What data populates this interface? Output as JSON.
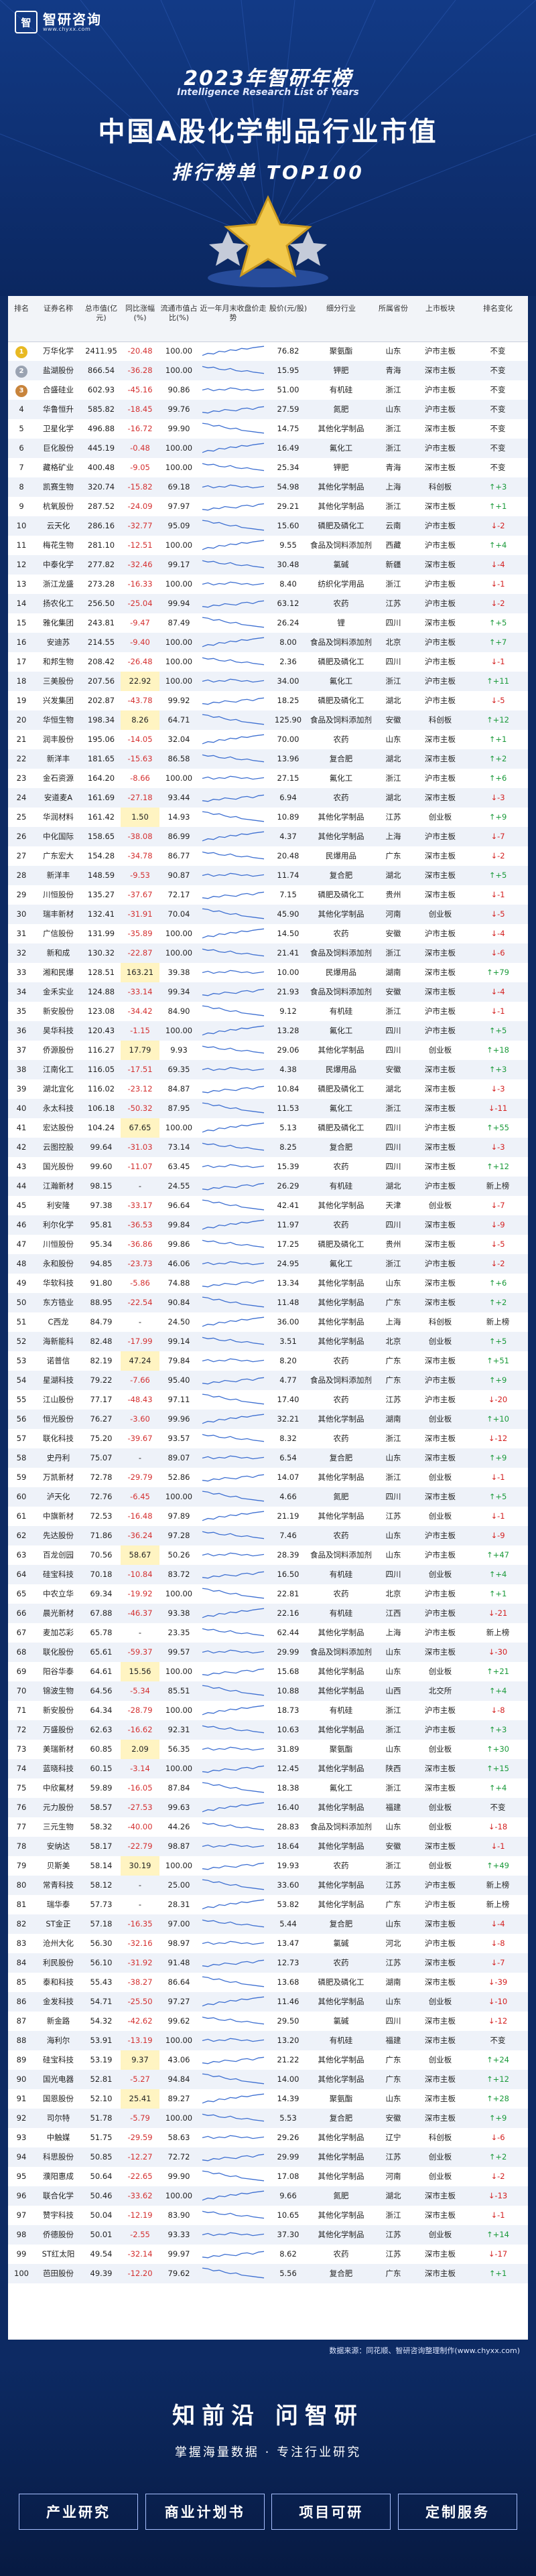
{
  "header": {
    "logo_mark": "智",
    "logo_text": "智研咨询",
    "logo_url": "www.chyxx.com",
    "year_title": "2023年智研年榜",
    "year_sub": "Intelligence Research List of Years",
    "main_title": "中国A股化学制品行业市值",
    "rank_title": "排行榜单 TOP100"
  },
  "columns": [
    "排名",
    "证券名称",
    "总市值(亿元)",
    "同比涨幅(%)",
    "流通市值占比(%)",
    "近一年月末收盘价走势",
    "股价(元/股)",
    "细分行业",
    "所属省份",
    "上市板块",
    "排名变化"
  ],
  "rows": [
    [
      "1",
      "万华化学",
      "2411.95",
      "-20.48",
      "100.00",
      "76.82",
      "聚氨酯",
      "山东",
      "沪市主板",
      "不变"
    ],
    [
      "2",
      "盐湖股份",
      "866.54",
      "-36.28",
      "100.00",
      "15.95",
      "钾肥",
      "青海",
      "深市主板",
      "不变"
    ],
    [
      "3",
      "合盛硅业",
      "602.93",
      "-45.16",
      "90.86",
      "51.00",
      "有机硅",
      "浙江",
      "沪市主板",
      "不变"
    ],
    [
      "4",
      "华鲁恒升",
      "585.82",
      "-18.45",
      "99.76",
      "27.59",
      "氮肥",
      "山东",
      "沪市主板",
      "不变"
    ],
    [
      "5",
      "卫星化学",
      "496.88",
      "-16.72",
      "99.90",
      "14.75",
      "其他化学制品",
      "浙江",
      "深市主板",
      "不变"
    ],
    [
      "6",
      "巨化股份",
      "445.19",
      "-0.48",
      "100.00",
      "16.49",
      "氟化工",
      "浙江",
      "沪市主板",
      "不变"
    ],
    [
      "7",
      "藏格矿业",
      "400.48",
      "-9.05",
      "100.00",
      "25.34",
      "钾肥",
      "青海",
      "深市主板",
      "不变"
    ],
    [
      "8",
      "凯赛生物",
      "320.74",
      "-15.82",
      "69.18",
      "54.98",
      "其他化学制品",
      "上海",
      "科创板",
      "↑+3"
    ],
    [
      "9",
      "杭氧股份",
      "287.52",
      "-24.09",
      "97.97",
      "29.21",
      "其他化学制品",
      "浙江",
      "深市主板",
      "↑+1"
    ],
    [
      "10",
      "云天化",
      "286.16",
      "-32.77",
      "95.09",
      "15.60",
      "磷肥及磷化工",
      "云南",
      "沪市主板",
      "↓-2"
    ],
    [
      "11",
      "梅花生物",
      "281.10",
      "-12.51",
      "100.00",
      "9.55",
      "食品及饲料添加剂",
      "西藏",
      "沪市主板",
      "↑+4"
    ],
    [
      "12",
      "中泰化学",
      "277.82",
      "-32.46",
      "99.17",
      "30.48",
      "氯碱",
      "新疆",
      "深市主板",
      "↓-4"
    ],
    [
      "13",
      "浙江龙盛",
      "273.28",
      "-16.33",
      "100.00",
      "8.40",
      "纺织化学用品",
      "浙江",
      "沪市主板",
      "↓-1"
    ],
    [
      "14",
      "扬农化工",
      "256.50",
      "-25.04",
      "99.94",
      "63.12",
      "农药",
      "江苏",
      "沪市主板",
      "↓-2"
    ],
    [
      "15",
      "雅化集团",
      "243.81",
      "-9.47",
      "87.49",
      "26.24",
      "锂",
      "四川",
      "深市主板",
      "↑+5"
    ],
    [
      "16",
      "安迪苏",
      "214.55",
      "-9.40",
      "100.00",
      "8.00",
      "食品及饲料添加剂",
      "北京",
      "沪市主板",
      "↑+7"
    ],
    [
      "17",
      "和邦生物",
      "208.42",
      "-26.48",
      "100.00",
      "2.36",
      "磷肥及磷化工",
      "四川",
      "沪市主板",
      "↓-1"
    ],
    [
      "18",
      "三美股份",
      "207.56",
      "22.92",
      "100.00",
      "34.00",
      "氟化工",
      "浙江",
      "沪市主板",
      "↑+11"
    ],
    [
      "19",
      "兴发集团",
      "202.87",
      "-43.78",
      "99.92",
      "18.25",
      "磷肥及磷化工",
      "湖北",
      "沪市主板",
      "↓-5"
    ],
    [
      "20",
      "华恒生物",
      "198.34",
      "8.26",
      "64.71",
      "125.90",
      "食品及饲料添加剂",
      "安徽",
      "科创板",
      "↑+12"
    ],
    [
      "21",
      "润丰股份",
      "195.06",
      "-14.05",
      "32.04",
      "70.00",
      "农药",
      "山东",
      "深市主板",
      "↑+1"
    ],
    [
      "22",
      "新洋丰",
      "181.65",
      "-15.63",
      "86.58",
      "13.96",
      "复合肥",
      "湖北",
      "深市主板",
      "↑+2"
    ],
    [
      "23",
      "金石资源",
      "164.20",
      "-8.66",
      "100.00",
      "27.15",
      "氟化工",
      "浙江",
      "沪市主板",
      "↑+6"
    ],
    [
      "24",
      "安道麦A",
      "161.69",
      "-27.18",
      "93.44",
      "6.94",
      "农药",
      "湖北",
      "深市主板",
      "↓-3"
    ],
    [
      "25",
      "华润材料",
      "161.42",
      "1.50",
      "14.93",
      "10.89",
      "其他化学制品",
      "江苏",
      "创业板",
      "↑+9"
    ],
    [
      "26",
      "中化国际",
      "158.65",
      "-38.08",
      "86.99",
      "4.37",
      "其他化学制品",
      "上海",
      "沪市主板",
      "↓-7"
    ],
    [
      "27",
      "广东宏大",
      "154.28",
      "-34.78",
      "86.77",
      "20.48",
      "民爆用品",
      "广东",
      "深市主板",
      "↓-2"
    ],
    [
      "28",
      "新洋丰",
      "148.59",
      "-9.53",
      "90.87",
      "11.74",
      "复合肥",
      "湖北",
      "深市主板",
      "↑+5"
    ],
    [
      "29",
      "川恒股份",
      "135.27",
      "-37.67",
      "72.17",
      "7.15",
      "磷肥及磷化工",
      "贵州",
      "深市主板",
      "↓-1"
    ],
    [
      "30",
      "瑞丰新材",
      "132.41",
      "-31.91",
      "70.04",
      "45.90",
      "其他化学制品",
      "河南",
      "创业板",
      "↓-5"
    ],
    [
      "31",
      "广信股份",
      "131.99",
      "-35.89",
      "100.00",
      "14.50",
      "农药",
      "安徽",
      "沪市主板",
      "↓-4"
    ],
    [
      "32",
      "新和成",
      "130.32",
      "-22.87",
      "100.00",
      "21.41",
      "食品及饲料添加剂",
      "浙江",
      "深市主板",
      "↓-6"
    ],
    [
      "33",
      "湘和民爆",
      "128.51",
      "163.21",
      "39.38",
      "10.00",
      "民爆用品",
      "湖南",
      "深市主板",
      "↑+79"
    ],
    [
      "34",
      "金禾实业",
      "124.88",
      "-33.14",
      "99.34",
      "21.93",
      "食品及饲料添加剂",
      "安徽",
      "深市主板",
      "↓-4"
    ],
    [
      "35",
      "新安股份",
      "123.08",
      "-34.42",
      "84.90",
      "9.12",
      "有机硅",
      "浙江",
      "沪市主板",
      "↓-1"
    ],
    [
      "36",
      "昊华科技",
      "120.43",
      "-1.15",
      "100.00",
      "13.28",
      "氟化工",
      "四川",
      "沪市主板",
      "↑+5"
    ],
    [
      "37",
      "侨源股份",
      "116.27",
      "17.79",
      "9.93",
      "29.06",
      "其他化学制品",
      "四川",
      "创业板",
      "↑+18"
    ],
    [
      "38",
      "江南化工",
      "116.05",
      "-17.51",
      "69.35",
      "4.38",
      "民爆用品",
      "安徽",
      "深市主板",
      "↑+3"
    ],
    [
      "39",
      "湖北宜化",
      "116.02",
      "-23.12",
      "84.87",
      "10.84",
      "磷肥及磷化工",
      "湖北",
      "深市主板",
      "↓-3"
    ],
    [
      "40",
      "永太科技",
      "106.18",
      "-50.32",
      "87.95",
      "11.53",
      "氟化工",
      "浙江",
      "深市主板",
      "↓-11"
    ],
    [
      "41",
      "宏达股份",
      "104.24",
      "67.65",
      "100.00",
      "5.13",
      "磷肥及磷化工",
      "四川",
      "沪市主板",
      "↑+55"
    ],
    [
      "42",
      "云图控股",
      "99.64",
      "-31.03",
      "73.14",
      "8.25",
      "复合肥",
      "四川",
      "深市主板",
      "↓-3"
    ],
    [
      "43",
      "国光股份",
      "99.60",
      "-11.07",
      "63.45",
      "15.39",
      "农药",
      "四川",
      "深市主板",
      "↑+12"
    ],
    [
      "44",
      "江瀚新材",
      "98.15",
      "-",
      "24.55",
      "26.29",
      "有机硅",
      "湖北",
      "沪市主板",
      "新上榜"
    ],
    [
      "45",
      "利安隆",
      "97.38",
      "-33.17",
      "96.64",
      "42.41",
      "其他化学制品",
      "天津",
      "创业板",
      "↓-7"
    ],
    [
      "46",
      "利尔化学",
      "95.81",
      "-36.53",
      "99.84",
      "11.97",
      "农药",
      "四川",
      "深市主板",
      "↓-9"
    ],
    [
      "47",
      "川恒股份",
      "95.34",
      "-36.86",
      "99.86",
      "17.25",
      "磷肥及磷化工",
      "贵州",
      "深市主板",
      "↓-5"
    ],
    [
      "48",
      "永和股份",
      "94.85",
      "-23.73",
      "46.06",
      "24.95",
      "氟化工",
      "浙江",
      "沪市主板",
      "↓-2"
    ],
    [
      "49",
      "华软科技",
      "91.80",
      "-5.86",
      "74.88",
      "13.34",
      "其他化学制品",
      "山东",
      "深市主板",
      "↑+6"
    ],
    [
      "50",
      "东方锆业",
      "88.95",
      "-22.54",
      "90.84",
      "11.48",
      "其他化学制品",
      "广东",
      "深市主板",
      "↑+2"
    ],
    [
      "51",
      "C西龙",
      "84.79",
      "-",
      "24.50",
      "36.00",
      "其他化学制品",
      "上海",
      "科创板",
      "新上榜"
    ],
    [
      "52",
      "海新能科",
      "82.48",
      "-17.99",
      "99.14",
      "3.51",
      "其他化学制品",
      "北京",
      "创业板",
      "↑+5"
    ],
    [
      "53",
      "诺普信",
      "82.19",
      "47.24",
      "79.84",
      "8.20",
      "农药",
      "广东",
      "深市主板",
      "↑+51"
    ],
    [
      "54",
      "星湖科技",
      "79.22",
      "-7.66",
      "95.40",
      "4.77",
      "食品及饲料添加剂",
      "广东",
      "沪市主板",
      "↑+9"
    ],
    [
      "55",
      "江山股份",
      "77.17",
      "-48.43",
      "97.11",
      "17.40",
      "农药",
      "江苏",
      "沪市主板",
      "↓-20"
    ],
    [
      "56",
      "恒光股份",
      "76.27",
      "-3.60",
      "99.96",
      "32.21",
      "其他化学制品",
      "湖南",
      "创业板",
      "↑+10"
    ],
    [
      "57",
      "联化科技",
      "75.20",
      "-39.67",
      "93.57",
      "8.32",
      "农药",
      "浙江",
      "深市主板",
      "↓-12"
    ],
    [
      "58",
      "史丹利",
      "75.07",
      "-",
      "89.07",
      "6.54",
      "复合肥",
      "山东",
      "深市主板",
      "↑+9"
    ],
    [
      "59",
      "万凯新材",
      "72.78",
      "-29.79",
      "52.86",
      "14.07",
      "其他化学制品",
      "浙江",
      "创业板",
      "↓-1"
    ],
    [
      "60",
      "泸天化",
      "72.76",
      "-6.45",
      "100.00",
      "4.66",
      "氮肥",
      "四川",
      "深市主板",
      "↑+5"
    ],
    [
      "61",
      "中旗新材",
      "72.53",
      "-16.48",
      "97.89",
      "21.19",
      "其他化学制品",
      "江苏",
      "创业板",
      "↓-1"
    ],
    [
      "62",
      "先达股份",
      "71.86",
      "-36.24",
      "97.28",
      "7.46",
      "农药",
      "山东",
      "沪市主板",
      "↓-9"
    ],
    [
      "63",
      "百龙创园",
      "70.56",
      "58.67",
      "50.26",
      "28.39",
      "食品及饲料添加剂",
      "山东",
      "沪市主板",
      "↑+47"
    ],
    [
      "64",
      "硅宝科技",
      "70.18",
      "-10.84",
      "83.72",
      "16.50",
      "有机硅",
      "四川",
      "创业板",
      "↑+4"
    ],
    [
      "65",
      "中农立华",
      "69.34",
      "-19.92",
      "100.00",
      "22.81",
      "农药",
      "北京",
      "沪市主板",
      "↑+1"
    ],
    [
      "66",
      "晨光新材",
      "67.88",
      "-46.37",
      "93.38",
      "22.16",
      "有机硅",
      "江西",
      "沪市主板",
      "↓-21"
    ],
    [
      "67",
      "麦加芯彩",
      "65.78",
      "-",
      "23.35",
      "62.44",
      "其他化学制品",
      "上海",
      "沪市主板",
      "新上榜"
    ],
    [
      "68",
      "联化股份",
      "65.61",
      "-59.37",
      "99.57",
      "29.99",
      "食品及饲料添加剂",
      "山东",
      "深市主板",
      "↓-30"
    ],
    [
      "69",
      "阳谷华泰",
      "64.61",
      "15.56",
      "100.00",
      "15.68",
      "其他化学制品",
      "山东",
      "创业板",
      "↑+21"
    ],
    [
      "70",
      "锦波生物",
      "64.56",
      "-5.34",
      "85.51",
      "10.88",
      "其他化学制品",
      "山西",
      "北交所",
      "↑+4"
    ],
    [
      "71",
      "新安股份",
      "64.34",
      "-28.79",
      "100.00",
      "18.73",
      "有机硅",
      "浙江",
      "沪市主板",
      "↓-8"
    ],
    [
      "72",
      "万盛股份",
      "62.63",
      "-16.62",
      "92.31",
      "10.63",
      "其他化学制品",
      "浙江",
      "沪市主板",
      "↑+3"
    ],
    [
      "73",
      "美瑞新材",
      "60.85",
      "2.09",
      "56.35",
      "31.89",
      "聚氨酯",
      "山东",
      "创业板",
      "↑+30"
    ],
    [
      "74",
      "蓝晓科技",
      "60.15",
      "-3.14",
      "100.00",
      "12.45",
      "其他化学制品",
      "陕西",
      "深市主板",
      "↑+15"
    ],
    [
      "75",
      "中欣氟材",
      "59.89",
      "-16.05",
      "87.84",
      "18.38",
      "氟化工",
      "浙江",
      "深市主板",
      "↑+4"
    ],
    [
      "76",
      "元力股份",
      "58.57",
      "-27.53",
      "99.63",
      "16.40",
      "其他化学制品",
      "福建",
      "创业板",
      "不变"
    ],
    [
      "77",
      "三元生物",
      "58.32",
      "-40.00",
      "44.26",
      "28.83",
      "食品及饲料添加剂",
      "山东",
      "创业板",
      "↓-18"
    ],
    [
      "78",
      "安纳达",
      "58.17",
      "-22.79",
      "98.87",
      "18.64",
      "其他化学制品",
      "安徽",
      "深市主板",
      "↓-1"
    ],
    [
      "79",
      "贝斯美",
      "58.14",
      "30.19",
      "100.00",
      "19.93",
      "农药",
      "浙江",
      "创业板",
      "↑+49"
    ],
    [
      "80",
      "常青科技",
      "58.12",
      "-",
      "25.00",
      "33.60",
      "其他化学制品",
      "江苏",
      "沪市主板",
      "新上榜"
    ],
    [
      "81",
      "瑞华泰",
      "57.73",
      "-",
      "28.31",
      "53.82",
      "其他化学制品",
      "广东",
      "沪市主板",
      "新上榜"
    ],
    [
      "82",
      "ST金正",
      "57.18",
      "-16.35",
      "97.00",
      "5.44",
      "复合肥",
      "山东",
      "深市主板",
      "↓-4"
    ],
    [
      "83",
      "沧州大化",
      "56.30",
      "-32.16",
      "98.97",
      "13.47",
      "氯碱",
      "河北",
      "沪市主板",
      "↓-8"
    ],
    [
      "84",
      "利民股份",
      "56.10",
      "-31.92",
      "91.48",
      "12.73",
      "农药",
      "江苏",
      "深市主板",
      "↓-7"
    ],
    [
      "85",
      "泰和科技",
      "55.43",
      "-38.27",
      "86.64",
      "13.68",
      "磷肥及磷化工",
      "湖南",
      "深市主板",
      "↓-39"
    ],
    [
      "86",
      "金发科技",
      "54.71",
      "-25.50",
      "97.27",
      "11.46",
      "其他化学制品",
      "山东",
      "创业板",
      "↓-10"
    ],
    [
      "87",
      "新金路",
      "54.32",
      "-42.62",
      "99.62",
      "29.50",
      "氯碱",
      "四川",
      "深市主板",
      "↓-12"
    ],
    [
      "88",
      "海利尔",
      "53.91",
      "-13.19",
      "100.00",
      "13.20",
      "有机硅",
      "福建",
      "深市主板",
      "不变"
    ],
    [
      "89",
      "硅宝科技",
      "53.19",
      "9.37",
      "43.06",
      "21.22",
      "其他化学制品",
      "广东",
      "创业板",
      "↑+24"
    ],
    [
      "90",
      "国光电器",
      "52.81",
      "-5.27",
      "94.84",
      "14.00",
      "其他化学制品",
      "广东",
      "深市主板",
      "↑+12"
    ],
    [
      "91",
      "国恩股份",
      "52.10",
      "25.41",
      "89.27",
      "14.39",
      "聚氨酯",
      "山东",
      "深市主板",
      "↑+28"
    ],
    [
      "92",
      "司尔特",
      "51.78",
      "-5.79",
      "100.00",
      "5.53",
      "复合肥",
      "安徽",
      "深市主板",
      "↑+9"
    ],
    [
      "93",
      "中触媒",
      "51.75",
      "-29.59",
      "58.63",
      "29.26",
      "其他化学制品",
      "辽宁",
      "科创板",
      "↓-6"
    ],
    [
      "94",
      "科思股份",
      "50.85",
      "-12.27",
      "72.72",
      "29.99",
      "其他化学制品",
      "江苏",
      "创业板",
      "↑+2"
    ],
    [
      "95",
      "濮阳惠成",
      "50.64",
      "-22.65",
      "99.90",
      "17.08",
      "其他化学制品",
      "河南",
      "创业板",
      "↓-2"
    ],
    [
      "96",
      "联合化学",
      "50.46",
      "-33.62",
      "100.00",
      "9.66",
      "氮肥",
      "湖北",
      "深市主板",
      "↓-13"
    ],
    [
      "97",
      "赞宇科技",
      "50.04",
      "-12.19",
      "83.90",
      "10.65",
      "其他化学制品",
      "浙江",
      "深市主板",
      "↓-1"
    ],
    [
      "98",
      "侨德股份",
      "50.01",
      "-2.55",
      "93.33",
      "37.30",
      "其他化学制品",
      "江苏",
      "创业板",
      "↑+14"
    ],
    [
      "99",
      "ST红太阳",
      "49.54",
      "-32.14",
      "99.97",
      "8.62",
      "农药",
      "江苏",
      "深市主板",
      "↓-17"
    ],
    [
      "100",
      "芭田股份",
      "49.39",
      "-12.20",
      "79.62",
      "5.56",
      "复合肥",
      "广东",
      "深市主板",
      "↑+1"
    ]
  ],
  "source": "数据来源：同花顺、智研咨询整理制作(www.chyxx.com)",
  "footer": {
    "brand": "知前沿 问智研",
    "slogan": "掌握海量数据 · 专注行业研究",
    "buttons": [
      "产业研究",
      "商业计划书",
      "项目可研",
      "定制服务"
    ]
  },
  "colors": {
    "up": "#1a9a3a",
    "down": "#d42020",
    "header_bg": "#123a86"
  }
}
